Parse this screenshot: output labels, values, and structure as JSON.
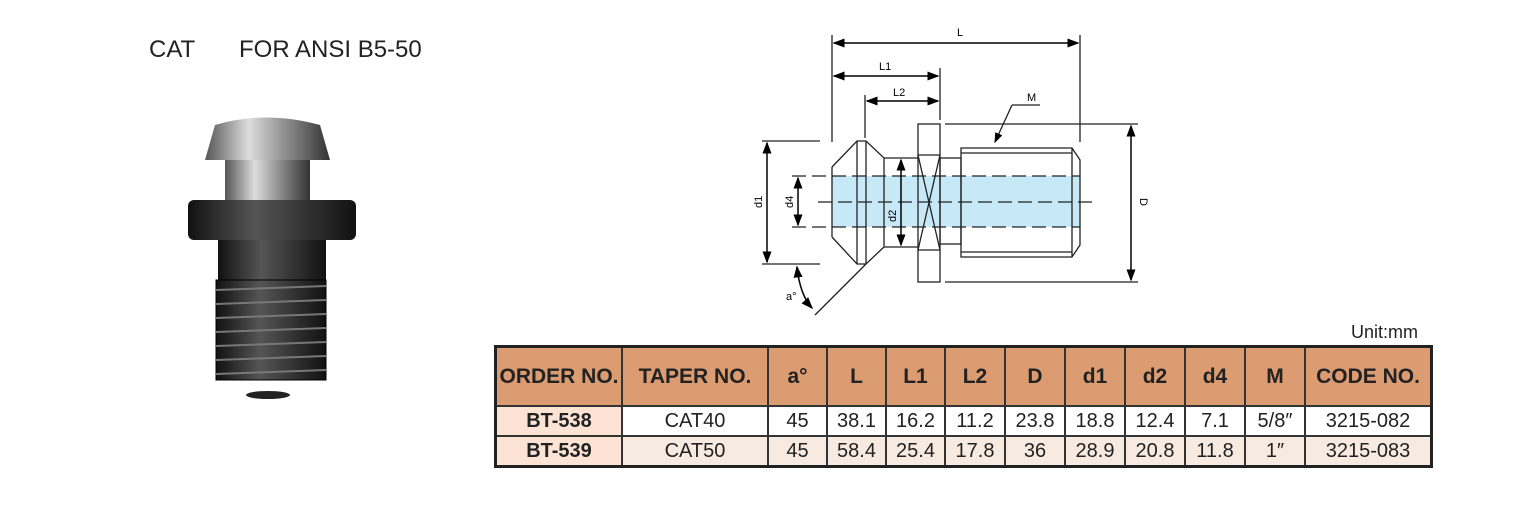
{
  "header": {
    "prefix": "CAT",
    "title": "FOR ANSI B5-50"
  },
  "diagram": {
    "labels": {
      "L": "L",
      "L1": "L1",
      "L2": "L2",
      "M": "M",
      "d1": "d1",
      "d4": "d4",
      "d2": "d2",
      "D": "D",
      "a": "a°"
    }
  },
  "unit": "Unit:mm",
  "table": {
    "headers": [
      "ORDER NO.",
      "TAPER NO.",
      "a°",
      "L",
      "L1",
      "L2",
      "D",
      "d1",
      "d2",
      "d4",
      "M",
      "CODE NO."
    ],
    "rows": [
      [
        "BT-538",
        "CAT40",
        "45",
        "38.1",
        "16.2",
        "11.2",
        "23.8",
        "18.8",
        "12.4",
        "7.1",
        "5/8″",
        "3215-082"
      ],
      [
        "BT-539",
        "CAT50",
        "45",
        "58.4",
        "25.4",
        "17.8",
        "36",
        "28.9",
        "20.8",
        "11.8",
        "1″",
        "3215-083"
      ]
    ]
  },
  "colors": {
    "header_bg": "#dc9c72",
    "order_bg": "#fde3d3",
    "row_alt": "#f7ebe1",
    "bore": "#c6e8f7"
  }
}
